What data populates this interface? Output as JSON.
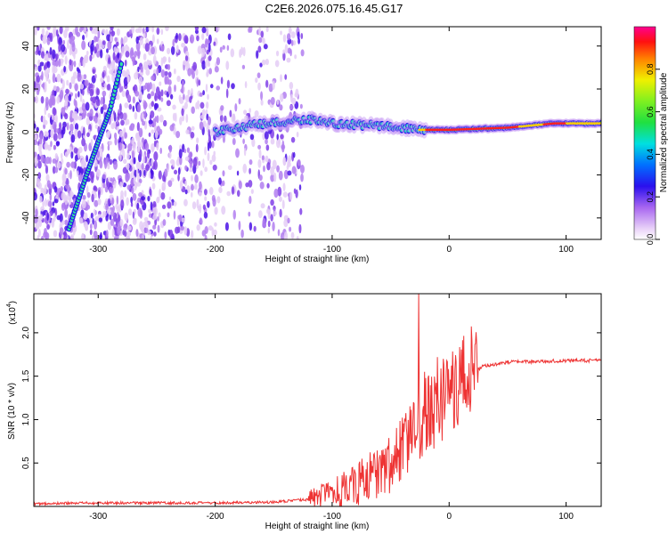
{
  "title": "C2E6.2026.075.16.45.G17",
  "chart_data": [
    {
      "type": "heatmap",
      "xlabel": "Height of straight line (km)",
      "ylabel": "Frequency (Hz)",
      "xlim": [
        -355,
        130
      ],
      "ylim": [
        -50,
        49
      ],
      "xticks": [
        -300,
        -200,
        -100,
        0,
        100
      ],
      "yticks": [
        -40,
        -20,
        0,
        20,
        40
      ],
      "colorbar": {
        "label": "Normalized spectral amplitude",
        "range": [
          0,
          1
        ],
        "ticks": [
          "0.0",
          "0.2",
          "0.4",
          "0.6",
          "0.8"
        ],
        "colormap": "rainbow (white-violet-blue-cyan-green-yellow-red-magenta)"
      },
      "features": {
        "carrier_line": [
          [
            -200,
            0
          ],
          [
            -170,
            3
          ],
          [
            -150,
            4
          ],
          [
            -120,
            6
          ],
          [
            -100,
            4
          ],
          [
            -70,
            3
          ],
          [
            -50,
            3
          ],
          [
            -30,
            1
          ],
          [
            0,
            1
          ],
          [
            50,
            2
          ],
          [
            90,
            4
          ],
          [
            130,
            4
          ]
        ],
        "diagonal_track": [
          [
            -325,
            -45
          ],
          [
            -310,
            -20
          ],
          [
            -297,
            0
          ],
          [
            -290,
            10
          ],
          [
            -280,
            32
          ]
        ]
      }
    },
    {
      "type": "line",
      "xlabel": "Height of straight line (km)",
      "ylabel": "SNR (10 * v/v)",
      "multiplier": "(x10",
      "multiplier_exp": "4",
      "xlim": [
        -355,
        130
      ],
      "ylim": [
        0,
        2.45
      ],
      "xticks": [
        -300,
        -200,
        -100,
        0,
        100
      ],
      "yticks": [
        "0.5",
        "1.0",
        "1.5",
        "2.0"
      ],
      "color": "#ee3333",
      "series": [
        {
          "x": [
            -355,
            -300,
            -250,
            -200,
            -150,
            -120,
            -100,
            -80,
            -60,
            -50,
            -40,
            -30,
            -25,
            -20,
            -10,
            0,
            10,
            20,
            30,
            50,
            80,
            100,
            130
          ],
          "y": [
            0.03,
            0.04,
            0.04,
            0.04,
            0.05,
            0.08,
            0.13,
            0.25,
            0.4,
            0.5,
            0.65,
            0.85,
            0.95,
            1.05,
            1.15,
            1.3,
            1.45,
            1.55,
            1.62,
            1.66,
            1.67,
            1.68,
            1.68
          ]
        }
      ],
      "spikes": [
        [
          -26,
          2.45
        ],
        [
          -21,
          1.55
        ],
        [
          -10,
          1.72
        ],
        [
          -5,
          1.7
        ],
        [
          -2,
          1.68
        ]
      ]
    }
  ]
}
